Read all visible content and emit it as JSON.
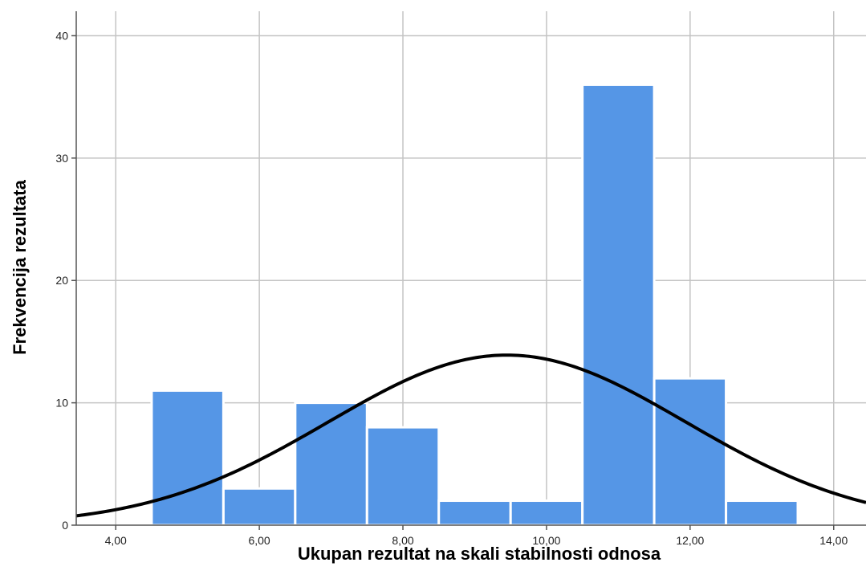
{
  "chart_data": {
    "type": "bar",
    "subtype": "histogram",
    "xlabel": "Ukupan rezultat na skali stabilnosti odnosa",
    "ylabel": "Frekvencija rezultata",
    "xlim": [
      3.45,
      14.45
    ],
    "ylim": [
      0,
      42
    ],
    "x_ticks": [
      4,
      6,
      8,
      10,
      12,
      14
    ],
    "x_tick_labels": [
      "4,00",
      "6,00",
      "8,00",
      "10,00",
      "12,00",
      "14,00"
    ],
    "y_ticks": [
      0,
      10,
      20,
      30,
      40
    ],
    "y_tick_labels": [
      "0",
      "10",
      "20",
      "30",
      "40"
    ],
    "grid": true,
    "bin_width": 1,
    "bins": [
      {
        "x": 5,
        "count": 11
      },
      {
        "x": 6,
        "count": 3
      },
      {
        "x": 7,
        "count": 10
      },
      {
        "x": 8,
        "count": 8
      },
      {
        "x": 9,
        "count": 2
      },
      {
        "x": 10,
        "count": 2
      },
      {
        "x": 11,
        "count": 36
      },
      {
        "x": 12,
        "count": 12
      },
      {
        "x": 13,
        "count": 2
      }
    ],
    "normal_curve": {
      "mean": 9.45,
      "std_dev": 2.49,
      "peak": 13.9
    },
    "colors": {
      "bar": "#5596e6",
      "curve": "#000000",
      "grid": "#c4c4c4"
    }
  }
}
